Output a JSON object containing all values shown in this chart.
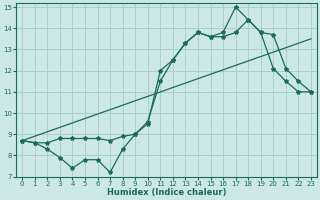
{
  "xlabel": "Humidex (Indice chaleur)",
  "background_color": "#cce8e4",
  "grid_color": "#aad0cc",
  "line_color": "#1a6b5a",
  "xlim": [
    -0.5,
    23.5
  ],
  "ylim": [
    7,
    15.2
  ],
  "xticks": [
    0,
    1,
    2,
    3,
    4,
    5,
    6,
    7,
    8,
    9,
    10,
    11,
    12,
    13,
    14,
    15,
    16,
    17,
    18,
    19,
    20,
    21,
    22,
    23
  ],
  "yticks": [
    7,
    8,
    9,
    10,
    11,
    12,
    13,
    14,
    15
  ],
  "line1_x": [
    0,
    23
  ],
  "line1_y": [
    8.7,
    13.5
  ],
  "line2_x": [
    0,
    1,
    2,
    3,
    4,
    5,
    6,
    7,
    8,
    9,
    10,
    11,
    12,
    13,
    14,
    15,
    16,
    17,
    18,
    19,
    20,
    21,
    22,
    23
  ],
  "line2_y": [
    8.7,
    8.6,
    8.3,
    7.9,
    7.4,
    7.8,
    7.8,
    7.2,
    8.3,
    9.0,
    9.6,
    11.5,
    12.5,
    13.3,
    13.8,
    13.6,
    13.6,
    13.8,
    14.4,
    13.8,
    12.1,
    11.5,
    11.0,
    11.0
  ],
  "line3_x": [
    0,
    1,
    2,
    3,
    4,
    5,
    6,
    7,
    8,
    9,
    10,
    11,
    12,
    13,
    14,
    15,
    16,
    17,
    18,
    19,
    20,
    21,
    22,
    23
  ],
  "line3_y": [
    8.7,
    8.6,
    8.6,
    8.8,
    8.8,
    8.8,
    8.8,
    8.7,
    8.9,
    9.0,
    9.5,
    12.0,
    12.5,
    13.3,
    13.8,
    13.6,
    13.8,
    15.0,
    14.4,
    13.8,
    13.7,
    12.1,
    11.5,
    11.0
  ],
  "marker": "*",
  "markersize": 3,
  "linewidth": 0.9,
  "tick_labelsize": 5,
  "xlabel_fontsize": 6
}
